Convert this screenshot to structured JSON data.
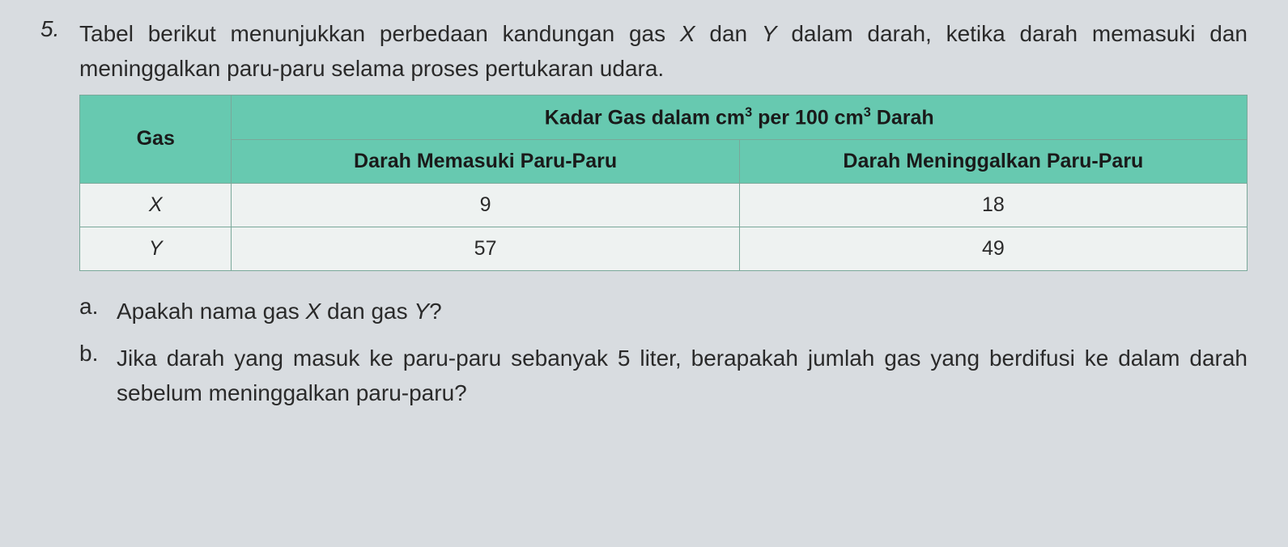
{
  "question": {
    "number": "5.",
    "text_part1": "Tabel berikut menunjukkan perbedaan kandungan gas ",
    "var_x": "X",
    "text_part2": " dan ",
    "var_y": "Y",
    "text_part3": " dalam darah, ketika darah memasuki dan meninggalkan paru-paru selama proses pertukaran udara."
  },
  "table": {
    "header_gas": "Gas",
    "header_kadar_pre": "Kadar Gas dalam cm",
    "header_kadar_mid": " per 100 cm",
    "header_kadar_post": " Darah",
    "exp": "3",
    "header_masuk": "Darah Memasuki Paru-Paru",
    "header_keluar": "Darah Meninggalkan Paru-Paru",
    "rows": [
      {
        "gas": "X",
        "masuk": "9",
        "keluar": "18"
      },
      {
        "gas": "Y",
        "masuk": "57",
        "keluar": "49"
      }
    ],
    "styling": {
      "header_bg": "#67c9b0",
      "cell_bg": "#eef2f1",
      "border_color": "#7aa89a",
      "header_fontsize": 25,
      "cell_fontsize": 25
    }
  },
  "sub_a": {
    "letter": "a.",
    "text_pre": "Apakah nama gas ",
    "var_x": "X",
    "text_mid": " dan gas ",
    "var_y": "Y",
    "text_post": "?"
  },
  "sub_b": {
    "letter": "b.",
    "text": "Jika darah yang masuk ke paru-paru sebanyak 5 liter, berapakah jumlah gas yang berdifusi ke dalam darah sebelum meninggalkan paru-paru?"
  }
}
